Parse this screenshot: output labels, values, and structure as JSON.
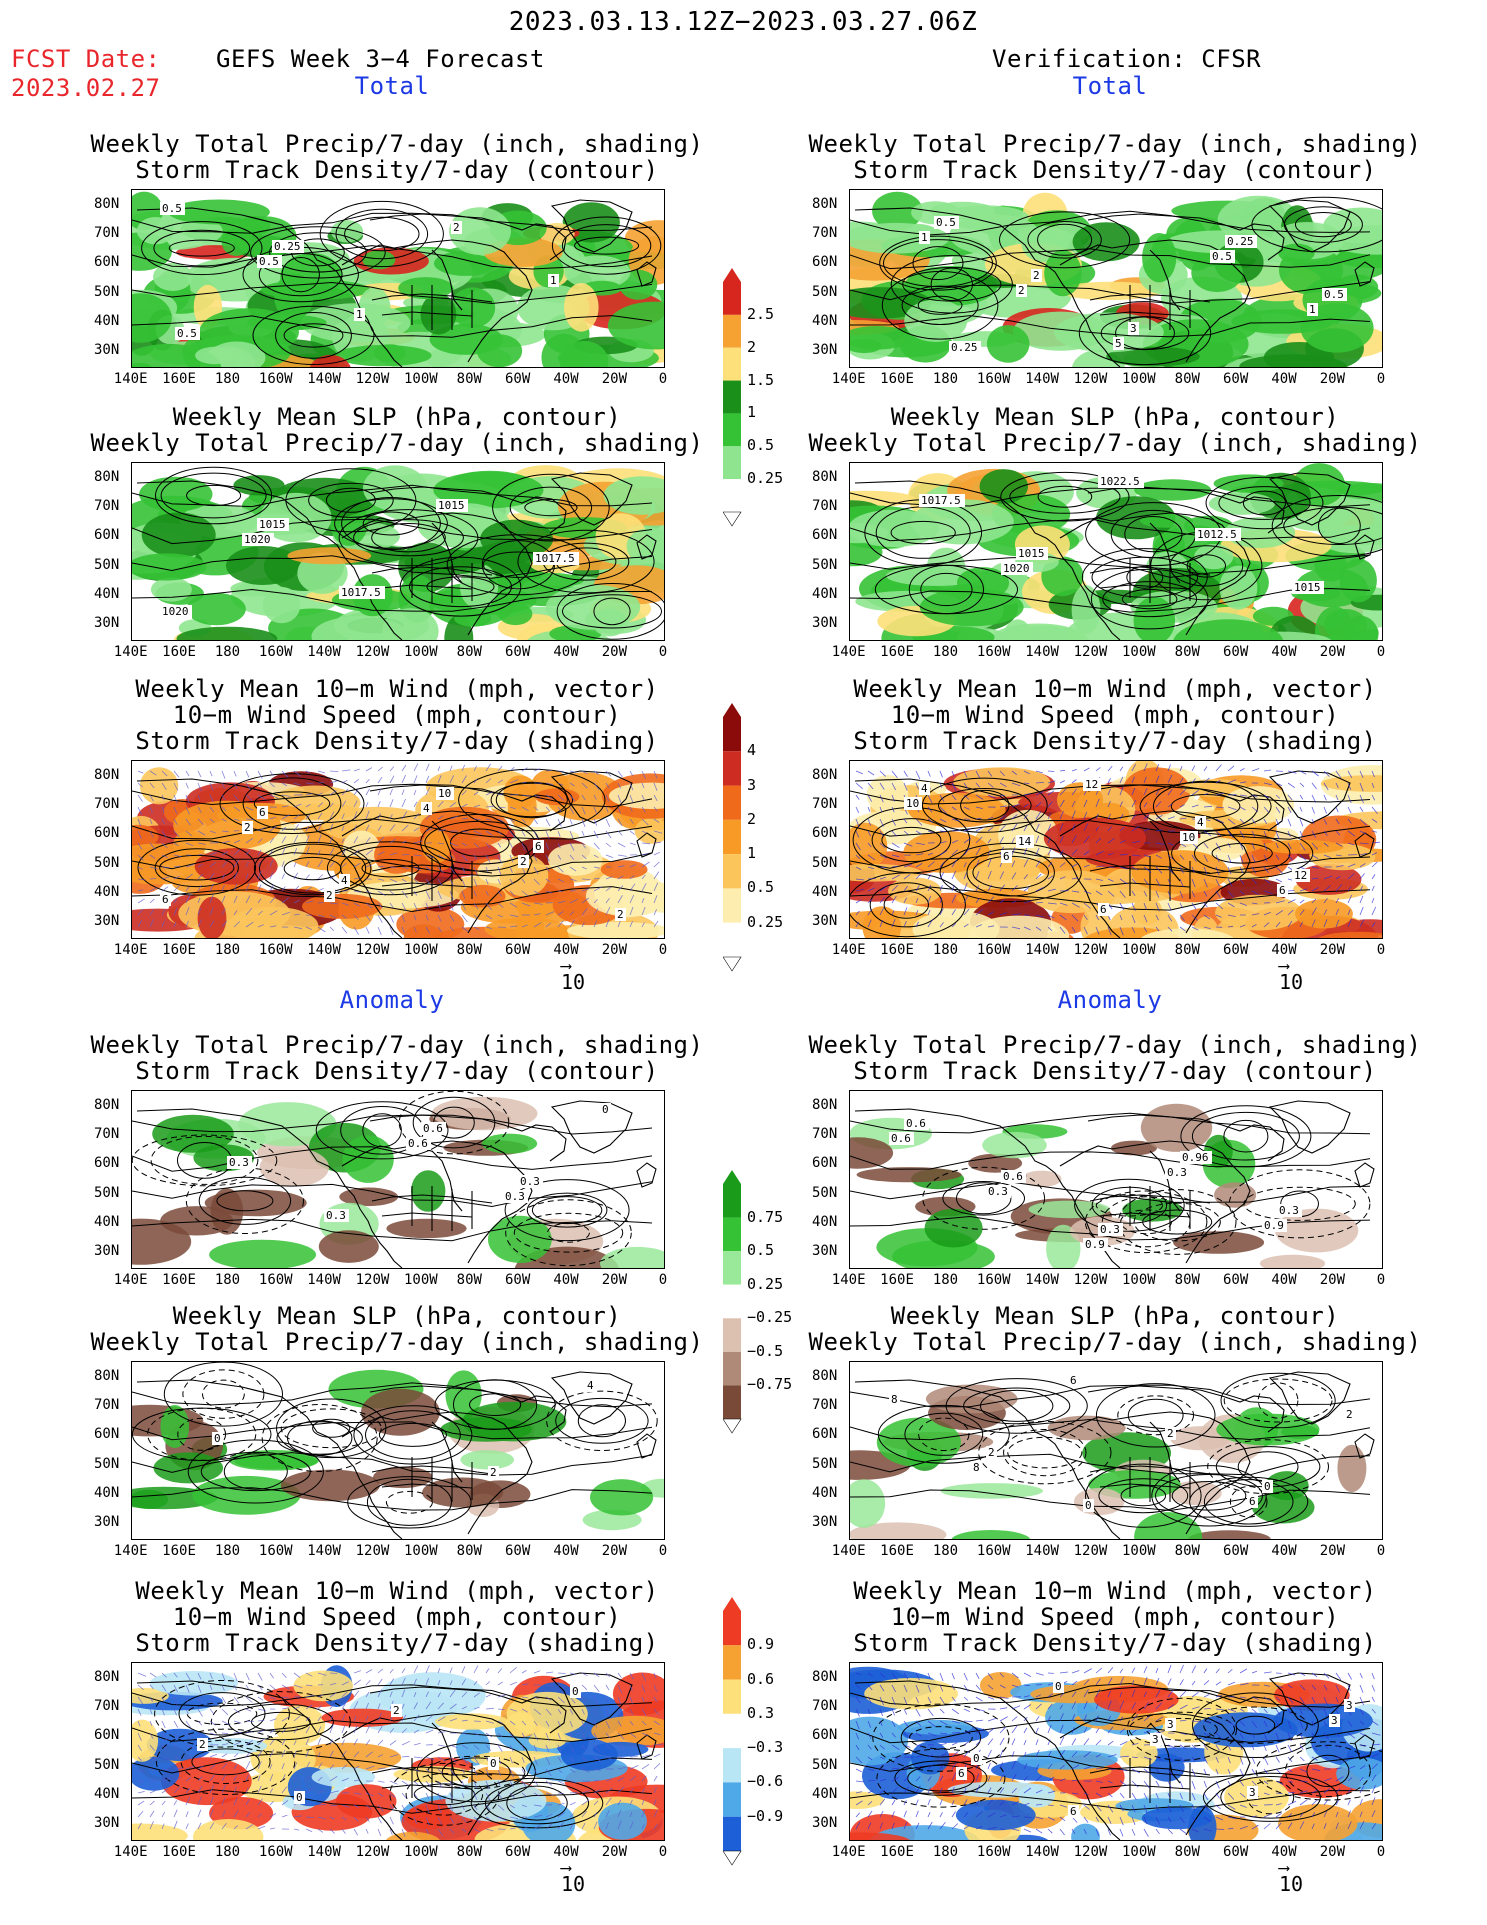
{
  "header": {
    "date_range": "2023.03.13.12Z−2023.03.27.06Z",
    "fcst_label": "FCST Date:",
    "fcst_date": "2023.02.27",
    "left_title": "GEFS Week 3−4 Forecast",
    "right_title": "Verification: CFSR",
    "total_label": "Total",
    "anomaly_label": "Anomaly"
  },
  "axes": {
    "lat_ticks": [
      "80N",
      "70N",
      "60N",
      "50N",
      "40N",
      "30N"
    ],
    "lon_ticks": [
      "140E",
      "160E",
      "180",
      "160W",
      "140W",
      "120W",
      "100W",
      "80W",
      "60W",
      "40W",
      "20W",
      "0"
    ]
  },
  "titles": {
    "precip_storm": [
      "Weekly Total Precip/7-day (inch, shading)",
      "Storm Track Density/7-day (contour)"
    ],
    "slp_precip": [
      "Weekly Mean SLP (hPa, contour)",
      "Weekly Total Precip/7-day (inch, shading)"
    ],
    "wind_storm": [
      "Weekly Mean 10−m Wind (mph, vector)",
      "10−m Wind Speed (mph, contour)",
      "Storm Track Density/7-day (shading)"
    ]
  },
  "vector_ref": "10",
  "legends": {
    "precip_total": {
      "labels": [
        "2.5",
        "2",
        "1.5",
        "1",
        "0.5",
        "0.25"
      ],
      "colors": [
        "#d7261e",
        "#f5a233",
        "#fde079",
        "#1a8f1a",
        "#35c235",
        "#8fe58f",
        "#ffffff"
      ]
    },
    "storm_total": {
      "labels": [
        "4",
        "3",
        "2",
        "1",
        "0.5",
        "0.25"
      ],
      "colors": [
        "#8b0b0b",
        "#cc2c22",
        "#f06a1c",
        "#f79a26",
        "#fcc55c",
        "#fdeeaf",
        "#ffffff"
      ]
    },
    "precip_anom": {
      "labels": [
        "0.75",
        "0.5",
        "0.25",
        "−0.25",
        "−0.5",
        "−0.75"
      ],
      "colors": [
        "#1a9c1a",
        "#35c235",
        "#9ae89a",
        "#ffffff",
        "#dcc1b1",
        "#b08a78",
        "#7a4a38"
      ]
    },
    "storm_anom": {
      "labels": [
        "0.9",
        "0.6",
        "0.3",
        "−0.3",
        "−0.6",
        "−0.9"
      ],
      "colors": [
        "#ee3b23",
        "#f5a233",
        "#fde079",
        "#ffffff",
        "#b9e6f5",
        "#4fa9e8",
        "#1c5fd6"
      ]
    }
  },
  "panels": [
    {
      "id": "lt1",
      "labels": [
        "0.5",
        "0.5",
        "1",
        "2",
        "1",
        "0.5",
        "0.25"
      ]
    },
    {
      "id": "rt1",
      "labels": [
        "1",
        "2",
        "5",
        "0.5",
        "1",
        "0.5",
        "2",
        "3",
        "0.25",
        "0.5",
        "0.25"
      ]
    },
    {
      "id": "lt2",
      "labels": [
        "1020",
        "1017.5",
        "1015",
        "1017.5",
        "1020",
        "1015"
      ]
    },
    {
      "id": "rt2",
      "labels": [
        "1020",
        "1022.5",
        "1012.5",
        "1015",
        "1017.5",
        "1015"
      ]
    },
    {
      "id": "lt3",
      "labels": [
        "2",
        "4",
        "2",
        "2",
        "2",
        "4",
        "10",
        "6",
        "6",
        "6"
      ]
    },
    {
      "id": "rt3",
      "labels": [
        "12",
        "10",
        "6",
        "10",
        "6",
        "6",
        "4",
        "12",
        "4",
        "14"
      ]
    },
    {
      "id": "la1",
      "labels": [
        "0.6",
        "0.3",
        "0",
        "0.3",
        "0.3",
        "0.6",
        "0.3"
      ]
    },
    {
      "id": "ra1",
      "labels": [
        "0.3",
        "0.9",
        "0.6",
        "0.3",
        "0.9",
        "0.96",
        "0.3",
        "0.6",
        "0.6",
        "0.3"
      ]
    },
    {
      "id": "la2",
      "labels": [
        "2",
        "4",
        "0"
      ]
    },
    {
      "id": "ra2",
      "labels": [
        "6",
        "2",
        "8",
        "6",
        "2",
        "0",
        "8",
        "2",
        "0"
      ]
    },
    {
      "id": "la3",
      "labels": [
        "0",
        "2",
        "0",
        "2",
        "0"
      ]
    },
    {
      "id": "ra3",
      "labels": [
        "3",
        "6",
        "0",
        "3",
        "3",
        "3",
        "0",
        "6",
        "3"
      ]
    }
  ]
}
